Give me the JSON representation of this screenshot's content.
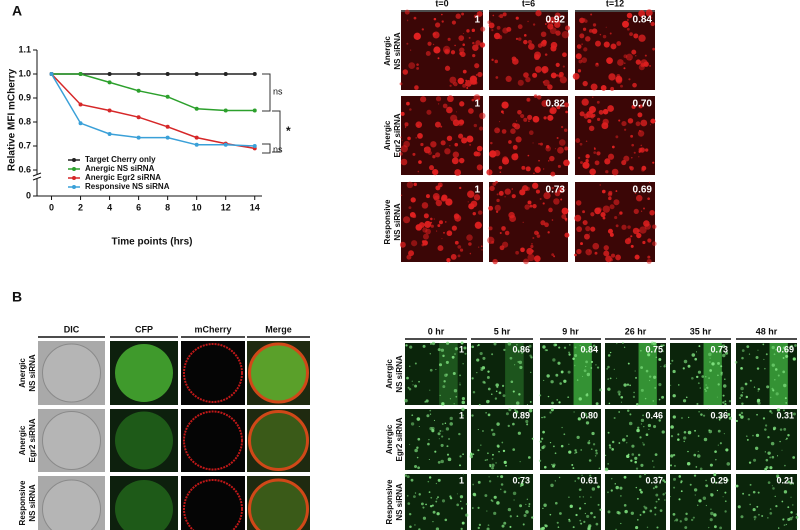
{
  "panel_labels": [
    "A",
    "B"
  ],
  "chart_data": {
    "type": "line",
    "ylabel": "Relative MFI mCherry",
    "xlabel": "Time points (hrs)",
    "x": [
      0,
      2,
      4,
      6,
      8,
      10,
      12,
      14
    ],
    "xlim": [
      -1,
      14.5
    ],
    "xticks": [
      0,
      2,
      4,
      6,
      8,
      10,
      12,
      14
    ],
    "ylim": [
      0.6,
      1.1
    ],
    "yticks": [
      0.6,
      0.7,
      0.8,
      0.9,
      {
        "value": 1.0,
        "label": "1.0"
      },
      1.1
    ],
    "break_yticks": [
      0
    ],
    "series": [
      {
        "name": "Target Cherry only",
        "color": "#222222",
        "values": [
          1,
          1,
          1,
          1,
          1,
          1,
          1,
          1
        ]
      },
      {
        "name": "Anergic NS siRNA",
        "color": "#2ca02c",
        "values": [
          1,
          1.0,
          0.965,
          0.93,
          0.905,
          0.855,
          0.848,
          0.848
        ]
      },
      {
        "name": "Anergic Egr2 siRNA",
        "color": "#d62728",
        "values": [
          1,
          0.873,
          0.848,
          0.82,
          0.78,
          0.735,
          0.71,
          0.69
        ]
      },
      {
        "name": "Responsive NS siRNA",
        "color": "#3aa0d8",
        "values": [
          1,
          0.795,
          0.75,
          0.735,
          0.735,
          0.705,
          0.705,
          0.7
        ]
      }
    ],
    "annotations": [
      "ns",
      "*",
      "ns"
    ]
  },
  "timelapse_a": {
    "columns": [
      "t=0",
      "t=6",
      "t=12"
    ],
    "rows": [
      [
        "Anergic",
        "NS siRNA"
      ],
      [
        "Anergic",
        "Egr2 siRNA"
      ],
      [
        "Responsive",
        "NS siRNA"
      ]
    ],
    "values": [
      [
        "1",
        "0.92",
        "0.84"
      ],
      [
        "1",
        "0.82",
        "0.70"
      ],
      [
        "1",
        "0.73",
        "0.69"
      ]
    ]
  },
  "colocalization": {
    "columns": [
      "DIC",
      "CFP",
      "mCherry",
      "Merge"
    ],
    "rows": [
      [
        "Anergic",
        "NS siRNA"
      ],
      [
        "Anergic",
        "Egr2 siRNA"
      ],
      [
        "Responsive",
        "NS siRNA"
      ]
    ]
  },
  "timelapse_b": {
    "columns": [
      "0 hr",
      "5 hr",
      "9 hr",
      "26 hr",
      "35 hr",
      "48 hr"
    ],
    "rows": [
      [
        "Anergic",
        "NS siRNA"
      ],
      [
        "Anergic",
        "Egr2 siRNA"
      ],
      [
        "Responsive",
        "NS siRNA"
      ]
    ],
    "values": [
      [
        "1",
        "0.86",
        "0.84",
        "0.75",
        "0.73",
        "0.69"
      ],
      [
        "1",
        "0.89",
        "0.80",
        "0.46",
        "0.36",
        "0.31"
      ],
      [
        "1",
        "0.73",
        "0.61",
        "0.37",
        "0.29",
        "0.21"
      ]
    ]
  }
}
